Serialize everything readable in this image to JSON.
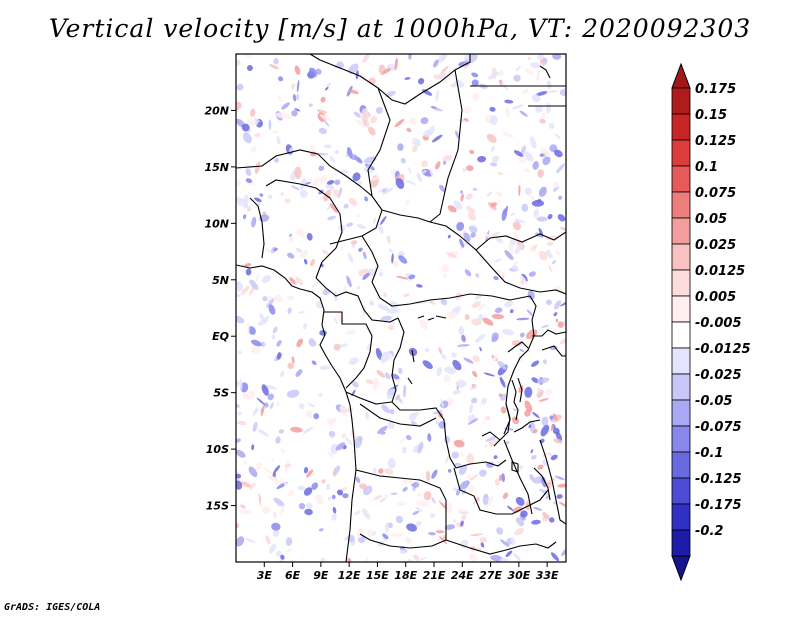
{
  "title": "Vertical velocity [m/s] at 1000hPa, VT: 2020092303",
  "credit": "GrADS: IGES/COLA",
  "map": {
    "lon_range": [
      0,
      35
    ],
    "lat_range": [
      -20,
      25
    ],
    "lat_labels": [
      {
        "lat": 20,
        "text": "20N"
      },
      {
        "lat": 15,
        "text": "15N"
      },
      {
        "lat": 10,
        "text": "10N"
      },
      {
        "lat": 5,
        "text": "5N"
      },
      {
        "lat": 0,
        "text": "EQ"
      },
      {
        "lat": -5,
        "text": "5S"
      },
      {
        "lat": -10,
        "text": "10S"
      },
      {
        "lat": -15,
        "text": "15S"
      }
    ],
    "lon_labels": [
      {
        "lon": 3,
        "text": "3E"
      },
      {
        "lon": 6,
        "text": "6E"
      },
      {
        "lon": 9,
        "text": "9E"
      },
      {
        "lon": 12,
        "text": "12E"
      },
      {
        "lon": 15,
        "text": "15E"
      },
      {
        "lon": 18,
        "text": "18E"
      },
      {
        "lon": 21,
        "text": "21E"
      },
      {
        "lon": 24,
        "text": "24E"
      },
      {
        "lon": 27,
        "text": "27E"
      },
      {
        "lon": 30,
        "text": "30E"
      },
      {
        "lon": 33,
        "text": "33E"
      }
    ]
  },
  "colorbar": {
    "levels": [
      {
        "label": "0.175",
        "color": "#b01c1c"
      },
      {
        "label": "0.15",
        "color": "#c82626"
      },
      {
        "label": "0.125",
        "color": "#dc3c3c"
      },
      {
        "label": "0.1",
        "color": "#e65a5a"
      },
      {
        "label": "0.075",
        "color": "#ec7e7e"
      },
      {
        "label": "0.05",
        "color": "#f29e9e"
      },
      {
        "label": "0.025",
        "color": "#f8c2c2"
      },
      {
        "label": "0.0125",
        "color": "#fcdcdc"
      },
      {
        "label": "0.005",
        "color": "#ffeeee"
      },
      {
        "label": "-0.005",
        "color": "#ffffff"
      },
      {
        "label": "-0.0125",
        "color": "#e4e4fc"
      },
      {
        "label": "-0.025",
        "color": "#c8c8f8"
      },
      {
        "label": "-0.05",
        "color": "#a8a8f4"
      },
      {
        "label": "-0.075",
        "color": "#8888ec"
      },
      {
        "label": "-0.1",
        "color": "#6a6ae0"
      },
      {
        "label": "-0.125",
        "color": "#4c4cd4"
      },
      {
        "label": "-0.175",
        "color": "#3030c4"
      },
      {
        "label": "-0.2",
        "color": "#1c1ca8"
      }
    ],
    "top_color": "#a01818",
    "bottom_color": "#15158f"
  }
}
